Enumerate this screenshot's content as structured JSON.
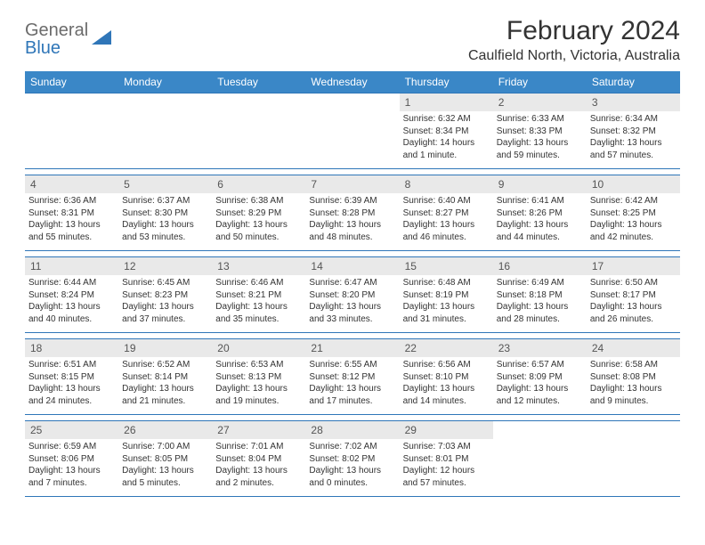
{
  "logo": {
    "line1": "General",
    "line2": "Blue"
  },
  "title": "February 2024",
  "location": "Caulfield North, Victoria, Australia",
  "colors": {
    "header_bg": "#3a87c7",
    "border": "#2f76b8",
    "daynum_bg": "#e9e9e9"
  },
  "daysOfWeek": [
    "Sunday",
    "Monday",
    "Tuesday",
    "Wednesday",
    "Thursday",
    "Friday",
    "Saturday"
  ],
  "weeks": [
    [
      {
        "n": "",
        "lines": []
      },
      {
        "n": "",
        "lines": []
      },
      {
        "n": "",
        "lines": []
      },
      {
        "n": "",
        "lines": []
      },
      {
        "n": "1",
        "lines": [
          "Sunrise: 6:32 AM",
          "Sunset: 8:34 PM",
          "Daylight: 14 hours and 1 minute."
        ]
      },
      {
        "n": "2",
        "lines": [
          "Sunrise: 6:33 AM",
          "Sunset: 8:33 PM",
          "Daylight: 13 hours and 59 minutes."
        ]
      },
      {
        "n": "3",
        "lines": [
          "Sunrise: 6:34 AM",
          "Sunset: 8:32 PM",
          "Daylight: 13 hours and 57 minutes."
        ]
      }
    ],
    [
      {
        "n": "4",
        "lines": [
          "Sunrise: 6:36 AM",
          "Sunset: 8:31 PM",
          "Daylight: 13 hours and 55 minutes."
        ]
      },
      {
        "n": "5",
        "lines": [
          "Sunrise: 6:37 AM",
          "Sunset: 8:30 PM",
          "Daylight: 13 hours and 53 minutes."
        ]
      },
      {
        "n": "6",
        "lines": [
          "Sunrise: 6:38 AM",
          "Sunset: 8:29 PM",
          "Daylight: 13 hours and 50 minutes."
        ]
      },
      {
        "n": "7",
        "lines": [
          "Sunrise: 6:39 AM",
          "Sunset: 8:28 PM",
          "Daylight: 13 hours and 48 minutes."
        ]
      },
      {
        "n": "8",
        "lines": [
          "Sunrise: 6:40 AM",
          "Sunset: 8:27 PM",
          "Daylight: 13 hours and 46 minutes."
        ]
      },
      {
        "n": "9",
        "lines": [
          "Sunrise: 6:41 AM",
          "Sunset: 8:26 PM",
          "Daylight: 13 hours and 44 minutes."
        ]
      },
      {
        "n": "10",
        "lines": [
          "Sunrise: 6:42 AM",
          "Sunset: 8:25 PM",
          "Daylight: 13 hours and 42 minutes."
        ]
      }
    ],
    [
      {
        "n": "11",
        "lines": [
          "Sunrise: 6:44 AM",
          "Sunset: 8:24 PM",
          "Daylight: 13 hours and 40 minutes."
        ]
      },
      {
        "n": "12",
        "lines": [
          "Sunrise: 6:45 AM",
          "Sunset: 8:23 PM",
          "Daylight: 13 hours and 37 minutes."
        ]
      },
      {
        "n": "13",
        "lines": [
          "Sunrise: 6:46 AM",
          "Sunset: 8:21 PM",
          "Daylight: 13 hours and 35 minutes."
        ]
      },
      {
        "n": "14",
        "lines": [
          "Sunrise: 6:47 AM",
          "Sunset: 8:20 PM",
          "Daylight: 13 hours and 33 minutes."
        ]
      },
      {
        "n": "15",
        "lines": [
          "Sunrise: 6:48 AM",
          "Sunset: 8:19 PM",
          "Daylight: 13 hours and 31 minutes."
        ]
      },
      {
        "n": "16",
        "lines": [
          "Sunrise: 6:49 AM",
          "Sunset: 8:18 PM",
          "Daylight: 13 hours and 28 minutes."
        ]
      },
      {
        "n": "17",
        "lines": [
          "Sunrise: 6:50 AM",
          "Sunset: 8:17 PM",
          "Daylight: 13 hours and 26 minutes."
        ]
      }
    ],
    [
      {
        "n": "18",
        "lines": [
          "Sunrise: 6:51 AM",
          "Sunset: 8:15 PM",
          "Daylight: 13 hours and 24 minutes."
        ]
      },
      {
        "n": "19",
        "lines": [
          "Sunrise: 6:52 AM",
          "Sunset: 8:14 PM",
          "Daylight: 13 hours and 21 minutes."
        ]
      },
      {
        "n": "20",
        "lines": [
          "Sunrise: 6:53 AM",
          "Sunset: 8:13 PM",
          "Daylight: 13 hours and 19 minutes."
        ]
      },
      {
        "n": "21",
        "lines": [
          "Sunrise: 6:55 AM",
          "Sunset: 8:12 PM",
          "Daylight: 13 hours and 17 minutes."
        ]
      },
      {
        "n": "22",
        "lines": [
          "Sunrise: 6:56 AM",
          "Sunset: 8:10 PM",
          "Daylight: 13 hours and 14 minutes."
        ]
      },
      {
        "n": "23",
        "lines": [
          "Sunrise: 6:57 AM",
          "Sunset: 8:09 PM",
          "Daylight: 13 hours and 12 minutes."
        ]
      },
      {
        "n": "24",
        "lines": [
          "Sunrise: 6:58 AM",
          "Sunset: 8:08 PM",
          "Daylight: 13 hours and 9 minutes."
        ]
      }
    ],
    [
      {
        "n": "25",
        "lines": [
          "Sunrise: 6:59 AM",
          "Sunset: 8:06 PM",
          "Daylight: 13 hours and 7 minutes."
        ]
      },
      {
        "n": "26",
        "lines": [
          "Sunrise: 7:00 AM",
          "Sunset: 8:05 PM",
          "Daylight: 13 hours and 5 minutes."
        ]
      },
      {
        "n": "27",
        "lines": [
          "Sunrise: 7:01 AM",
          "Sunset: 8:04 PM",
          "Daylight: 13 hours and 2 minutes."
        ]
      },
      {
        "n": "28",
        "lines": [
          "Sunrise: 7:02 AM",
          "Sunset: 8:02 PM",
          "Daylight: 13 hours and 0 minutes."
        ]
      },
      {
        "n": "29",
        "lines": [
          "Sunrise: 7:03 AM",
          "Sunset: 8:01 PM",
          "Daylight: 12 hours and 57 minutes."
        ]
      },
      {
        "n": "",
        "lines": []
      },
      {
        "n": "",
        "lines": []
      }
    ]
  ]
}
